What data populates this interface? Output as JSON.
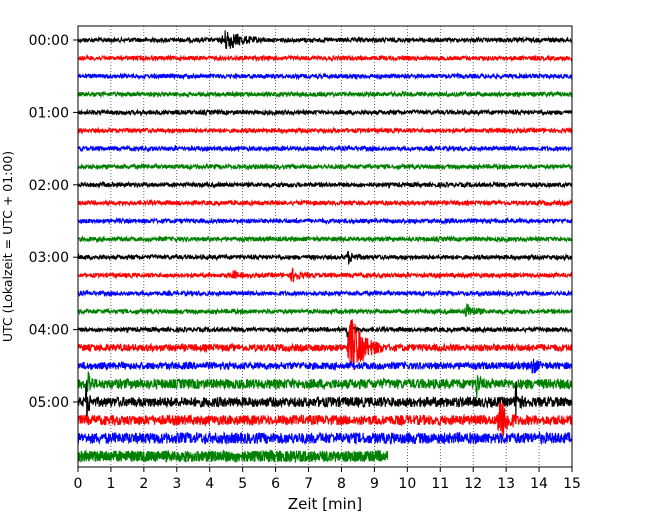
{
  "chart_data": {
    "type": "line",
    "title": "",
    "xlabel": "Zeit  [min]",
    "ylabel": "UTC (Lokalzeit = UTC + 01:00)",
    "xlim": [
      0,
      15
    ],
    "x_ticks": [
      "0",
      "1",
      "2",
      "3",
      "4",
      "5",
      "6",
      "7",
      "8",
      "9",
      "10",
      "11",
      "12",
      "13",
      "14",
      "15"
    ],
    "y_ticks": [
      {
        "label": "00:00",
        "row": 0
      },
      {
        "label": "01:00",
        "row": 4
      },
      {
        "label": "02:00",
        "row": 8
      },
      {
        "label": "03:00",
        "row": 12
      },
      {
        "label": "04:00",
        "row": 16
      },
      {
        "label": "05:00",
        "row": 20
      }
    ],
    "grid": "vertical dotted at each minute",
    "trace_duration_min": 15,
    "last_trace_end_min": 9.4,
    "colors": [
      "#000000",
      "#ff0000",
      "#0000ff",
      "#008000"
    ],
    "traces": [
      {
        "row": 0,
        "color": "#000000",
        "events": [
          {
            "t": 4.5,
            "amp": 0.55,
            "dur": 1.2
          }
        ]
      },
      {
        "row": 1,
        "color": "#ff0000",
        "events": []
      },
      {
        "row": 2,
        "color": "#0000ff",
        "events": []
      },
      {
        "row": 3,
        "color": "#008000",
        "events": []
      },
      {
        "row": 4,
        "color": "#000000",
        "events": []
      },
      {
        "row": 5,
        "color": "#ff0000",
        "events": []
      },
      {
        "row": 6,
        "color": "#0000ff",
        "events": []
      },
      {
        "row": 7,
        "color": "#008000",
        "events": []
      },
      {
        "row": 8,
        "color": "#000000",
        "events": []
      },
      {
        "row": 9,
        "color": "#ff0000",
        "events": []
      },
      {
        "row": 10,
        "color": "#0000ff",
        "events": []
      },
      {
        "row": 11,
        "color": "#008000",
        "events": []
      },
      {
        "row": 12,
        "color": "#000000",
        "events": [
          {
            "t": 8.2,
            "amp": 0.3,
            "dur": 0.5
          }
        ]
      },
      {
        "row": 13,
        "color": "#ff0000",
        "events": [
          {
            "t": 4.7,
            "amp": 0.3,
            "dur": 0.3
          },
          {
            "t": 6.5,
            "amp": 0.35,
            "dur": 0.5
          }
        ]
      },
      {
        "row": 14,
        "color": "#0000ff",
        "events": []
      },
      {
        "row": 15,
        "color": "#008000",
        "events": [
          {
            "t": 11.8,
            "amp": 0.4,
            "dur": 0.6
          }
        ]
      },
      {
        "row": 16,
        "color": "#000000",
        "events": [
          {
            "t": 8.2,
            "amp": 1.3,
            "dur": 0.3
          }
        ]
      },
      {
        "row": 17,
        "color": "#ff0000",
        "events": [
          {
            "t": 8.3,
            "amp": 1.6,
            "dur": 1.0
          }
        ]
      },
      {
        "row": 18,
        "color": "#0000ff",
        "events": [
          {
            "t": 13.8,
            "amp": 0.5,
            "dur": 0.3
          }
        ]
      },
      {
        "row": 19,
        "color": "#008000",
        "events": [
          {
            "t": 0.3,
            "amp": 0.9,
            "dur": 0.2
          },
          {
            "t": 12.1,
            "amp": 0.8,
            "dur": 0.2
          }
        ]
      },
      {
        "row": 20,
        "color": "#000000",
        "events": [
          {
            "t": 0.25,
            "amp": 1.2,
            "dur": 0.2
          },
          {
            "t": 13.3,
            "amp": 1.4,
            "dur": 0.2
          }
        ]
      },
      {
        "row": 21,
        "color": "#ff0000",
        "events": [
          {
            "t": 12.8,
            "amp": 1.5,
            "dur": 0.5
          }
        ]
      },
      {
        "row": 22,
        "color": "#0000ff",
        "events": []
      },
      {
        "row": 23,
        "color": "#008000",
        "events": []
      }
    ]
  }
}
